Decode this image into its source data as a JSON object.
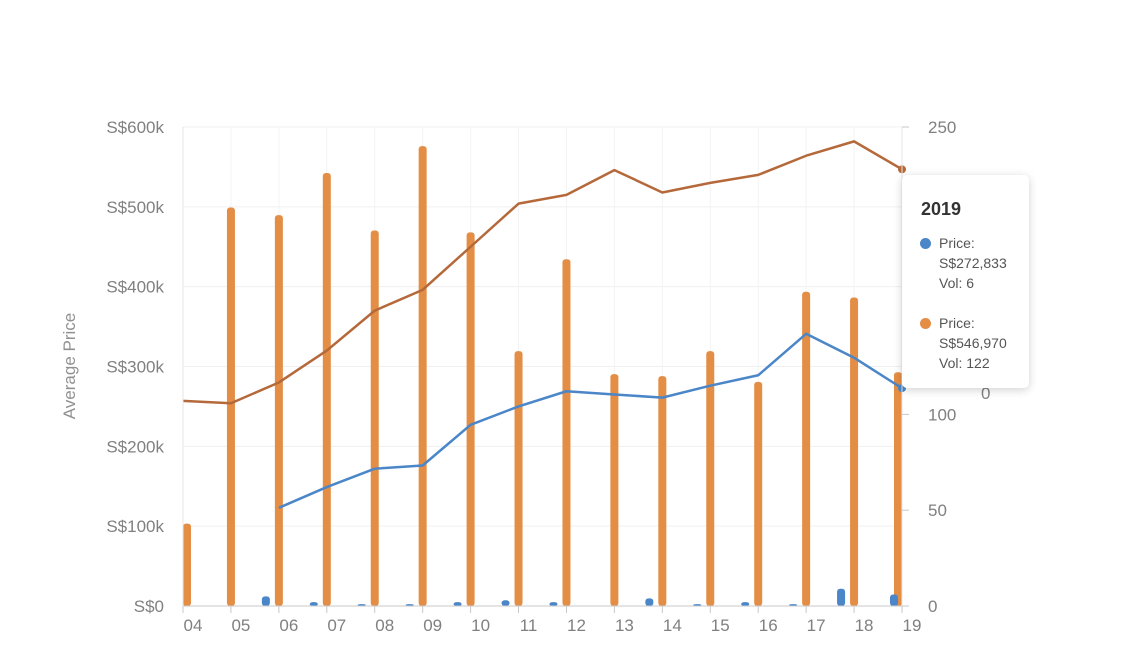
{
  "chart_data": {
    "type": "bar+line",
    "x": [
      "04",
      "05",
      "06",
      "07",
      "08",
      "09",
      "10",
      "11",
      "12",
      "13",
      "14",
      "15",
      "16",
      "17",
      "18",
      "19"
    ],
    "y_left": {
      "label": "Average Price",
      "ticks": [
        "S$0",
        "S$100k",
        "S$200k",
        "S$300k",
        "S$400k",
        "S$500k",
        "S$600k"
      ],
      "range": [
        0,
        600000
      ]
    },
    "y_right": {
      "ticks": [
        "0",
        "50",
        "100",
        "250"
      ],
      "tick_values": [
        0,
        50,
        100,
        250
      ],
      "range": [
        0,
        250
      ],
      "partial_tick_glyph": "0"
    },
    "grid": true,
    "series": [
      {
        "color": "#4a86c8",
        "price": [
          null,
          null,
          123000,
          149000,
          172000,
          176000,
          227000,
          250000,
          269000,
          265000,
          261000,
          276000,
          289000,
          341000,
          311000,
          272833
        ],
        "volume": [
          0,
          0,
          5,
          2,
          1,
          1,
          2,
          3,
          2,
          0,
          4,
          1,
          2,
          1,
          9,
          6
        ]
      },
      {
        "color": "#e48d45",
        "line_color": "#b5693a",
        "price": [
          257000,
          254000,
          280000,
          320000,
          370000,
          396000,
          450000,
          504000,
          515000,
          546000,
          518000,
          530000,
          540000,
          564000,
          582000,
          546970
        ],
        "volume": [
          43,
          208,
          204,
          226,
          196,
          240,
          195,
          133,
          181,
          121,
          120,
          133,
          117,
          164,
          161,
          122
        ]
      }
    ]
  },
  "tooltip": {
    "title": "2019",
    "entries": [
      {
        "color": "#4a86c8",
        "price": "Price:",
        "value": "S$272,833",
        "vol": "Vol: 6"
      },
      {
        "color": "#e48d45",
        "price": "Price:",
        "value": "S$546,970",
        "vol": "Vol: 122"
      }
    ]
  }
}
